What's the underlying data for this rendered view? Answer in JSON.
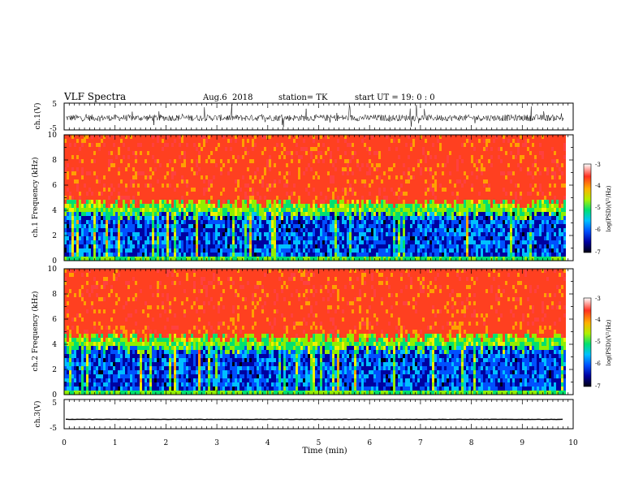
{
  "header": {
    "title": "VLF Spectra",
    "date": "Aug.6",
    "year": "2018",
    "station": "station= TK",
    "start_ut": "start UT = 19: 0 : 0"
  },
  "colors": {
    "rainbow": [
      "#000010",
      "#0000a0",
      "#0050ff",
      "#00c0ff",
      "#00e070",
      "#90ee00",
      "#f0f000",
      "#ffa000",
      "#ff4020",
      "#ff4040"
    ],
    "trace": "#000000"
  },
  "chart_data": [
    {
      "type": "line",
      "name": "ch1-waveform",
      "ylabel": "ch.1(V)",
      "ylim": [
        -5,
        5
      ],
      "yticks": [
        "5",
        "-5"
      ],
      "xlim": [
        0,
        10
      ],
      "baseline": -0.5,
      "noise_amplitude": 1.2,
      "spike_amplitude": 4.5
    },
    {
      "type": "heatmap",
      "name": "ch1-spectrogram",
      "ylabel": "ch.1 Frequency (kHz)",
      "ylim": [
        0,
        10
      ],
      "yticks": [
        "0",
        "2",
        "4",
        "6",
        "8",
        "10"
      ],
      "xlim": [
        0,
        9.82
      ],
      "colorbar": {
        "label": "log(PSD)(V²/Hz)",
        "range": [
          -7,
          -3
        ],
        "ticks": [
          "-3",
          "-4",
          "-5",
          "-6",
          "-7"
        ]
      },
      "transition_khz": 4.0,
      "low_band_level": -6.3,
      "high_band_level": -3.6
    },
    {
      "type": "heatmap",
      "name": "ch2-spectrogram",
      "ylabel": "ch.2 Frequency (kHz)",
      "ylim": [
        0,
        10
      ],
      "yticks": [
        "0",
        "2",
        "4",
        "6",
        "8",
        "10"
      ],
      "xlim": [
        0,
        9.82
      ],
      "colorbar": {
        "label": "log(PSD)(V²/Hz)",
        "range": [
          -7,
          -3
        ],
        "ticks": [
          "-3",
          "-4",
          "-5",
          "-6",
          "-7"
        ]
      },
      "transition_khz": 4.0,
      "low_band_level": -6.3,
      "high_band_level": -3.6
    },
    {
      "type": "line",
      "name": "ch3-waveform",
      "ylabel": "ch.3(V)",
      "ylim": [
        -5,
        5
      ],
      "yticks": [
        "5",
        "-5"
      ],
      "xlim": [
        0,
        10
      ],
      "baseline": -1.8,
      "noise_amplitude": 0.05
    }
  ],
  "xaxis": {
    "label": "Time (min)",
    "ticks": [
      "0",
      "1",
      "2",
      "3",
      "4",
      "5",
      "6",
      "7",
      "8",
      "9",
      "10"
    ],
    "range": [
      0,
      10
    ]
  }
}
